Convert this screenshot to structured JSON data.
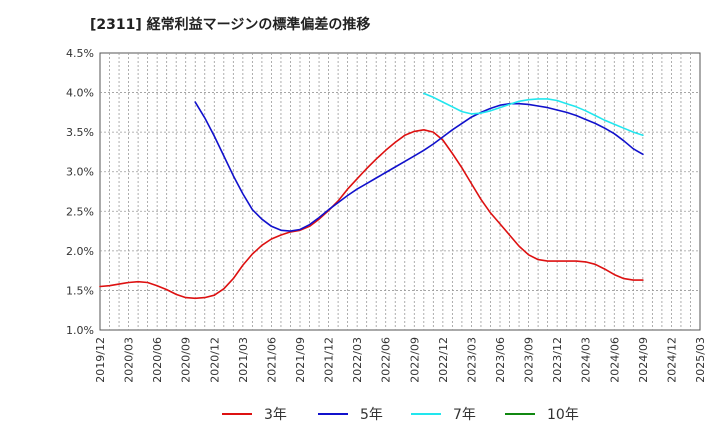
{
  "chart_data": {
    "type": "line",
    "title": "[2311]  経常利益マージンの標準偏差の推移",
    "xlabel": "",
    "ylabel": "",
    "ylim": [
      1.0,
      4.5
    ],
    "yticks": [
      "1.0%",
      "1.5%",
      "2.0%",
      "2.5%",
      "3.0%",
      "3.5%",
      "4.0%",
      "4.5%"
    ],
    "ytick_values": [
      1.0,
      1.5,
      2.0,
      2.5,
      3.0,
      3.5,
      4.0,
      4.5
    ],
    "xlim": [
      "2019-12",
      "2025-03"
    ],
    "xticks": [
      "2019/12",
      "2020/03",
      "2020/06",
      "2020/09",
      "2020/12",
      "2021/03",
      "2021/06",
      "2021/09",
      "2021/12",
      "2022/03",
      "2022/06",
      "2022/09",
      "2022/12",
      "2023/03",
      "2023/06",
      "2023/09",
      "2023/12",
      "2024/03",
      "2024/06",
      "2024/09",
      "2024/12",
      "2025/03"
    ],
    "grid": true,
    "legend_position": "bottom",
    "series": [
      {
        "name": "3年",
        "color": "#dd1111",
        "points": [
          [
            "2019-12",
            1.55
          ],
          [
            "2020-01",
            1.56
          ],
          [
            "2020-02",
            1.58
          ],
          [
            "2020-03",
            1.6
          ],
          [
            "2020-04",
            1.61
          ],
          [
            "2020-05",
            1.6
          ],
          [
            "2020-06",
            1.56
          ],
          [
            "2020-07",
            1.51
          ],
          [
            "2020-08",
            1.45
          ],
          [
            "2020-09",
            1.41
          ],
          [
            "2020-10",
            1.4
          ],
          [
            "2020-11",
            1.41
          ],
          [
            "2020-12",
            1.44
          ],
          [
            "2021-01",
            1.52
          ],
          [
            "2021-02",
            1.65
          ],
          [
            "2021-03",
            1.82
          ],
          [
            "2021-04",
            1.96
          ],
          [
            "2021-05",
            2.07
          ],
          [
            "2021-06",
            2.15
          ],
          [
            "2021-07",
            2.2
          ],
          [
            "2021-08",
            2.24
          ],
          [
            "2021-09",
            2.26
          ],
          [
            "2021-10",
            2.31
          ],
          [
            "2021-11",
            2.4
          ],
          [
            "2021-12",
            2.51
          ],
          [
            "2022-01",
            2.63
          ],
          [
            "2022-02",
            2.78
          ],
          [
            "2022-03",
            2.91
          ],
          [
            "2022-04",
            3.04
          ],
          [
            "2022-05",
            3.16
          ],
          [
            "2022-06",
            3.27
          ],
          [
            "2022-07",
            3.37
          ],
          [
            "2022-08",
            3.46
          ],
          [
            "2022-09",
            3.51
          ],
          [
            "2022-10",
            3.53
          ],
          [
            "2022-11",
            3.5
          ],
          [
            "2022-12",
            3.4
          ],
          [
            "2023-01",
            3.23
          ],
          [
            "2023-02",
            3.05
          ],
          [
            "2023-03",
            2.85
          ],
          [
            "2023-04",
            2.65
          ],
          [
            "2023-05",
            2.48
          ],
          [
            "2023-06",
            2.34
          ],
          [
            "2023-07",
            2.2
          ],
          [
            "2023-08",
            2.06
          ],
          [
            "2023-09",
            1.95
          ],
          [
            "2023-10",
            1.89
          ],
          [
            "2023-11",
            1.87
          ],
          [
            "2023-12",
            1.87
          ],
          [
            "2024-01",
            1.87
          ],
          [
            "2024-02",
            1.87
          ],
          [
            "2024-03",
            1.86
          ],
          [
            "2024-04",
            1.83
          ],
          [
            "2024-05",
            1.77
          ],
          [
            "2024-06",
            1.7
          ],
          [
            "2024-07",
            1.65
          ],
          [
            "2024-08",
            1.63
          ],
          [
            "2024-09",
            1.63
          ]
        ]
      },
      {
        "name": "5年",
        "color": "#1111cc",
        "points": [
          [
            "2020-10",
            3.88
          ],
          [
            "2020-11",
            3.68
          ],
          [
            "2020-12",
            3.45
          ],
          [
            "2021-01",
            3.2
          ],
          [
            "2021-02",
            2.95
          ],
          [
            "2021-03",
            2.72
          ],
          [
            "2021-04",
            2.52
          ],
          [
            "2021-05",
            2.4
          ],
          [
            "2021-06",
            2.31
          ],
          [
            "2021-07",
            2.26
          ],
          [
            "2021-08",
            2.25
          ],
          [
            "2021-09",
            2.27
          ],
          [
            "2021-10",
            2.33
          ],
          [
            "2021-11",
            2.42
          ],
          [
            "2021-12",
            2.52
          ],
          [
            "2022-01",
            2.61
          ],
          [
            "2022-02",
            2.7
          ],
          [
            "2022-03",
            2.78
          ],
          [
            "2022-04",
            2.85
          ],
          [
            "2022-05",
            2.92
          ],
          [
            "2022-06",
            2.99
          ],
          [
            "2022-07",
            3.06
          ],
          [
            "2022-08",
            3.13
          ],
          [
            "2022-09",
            3.2
          ],
          [
            "2022-10",
            3.27
          ],
          [
            "2022-11",
            3.35
          ],
          [
            "2022-12",
            3.44
          ],
          [
            "2023-01",
            3.53
          ],
          [
            "2023-02",
            3.61
          ],
          [
            "2023-03",
            3.69
          ],
          [
            "2023-04",
            3.75
          ],
          [
            "2023-05",
            3.8
          ],
          [
            "2023-06",
            3.84
          ],
          [
            "2023-07",
            3.86
          ],
          [
            "2023-08",
            3.86
          ],
          [
            "2023-09",
            3.85
          ],
          [
            "2023-10",
            3.83
          ],
          [
            "2023-11",
            3.81
          ],
          [
            "2023-12",
            3.78
          ],
          [
            "2024-01",
            3.75
          ],
          [
            "2024-02",
            3.71
          ],
          [
            "2024-03",
            3.66
          ],
          [
            "2024-04",
            3.61
          ],
          [
            "2024-05",
            3.55
          ],
          [
            "2024-06",
            3.48
          ],
          [
            "2024-07",
            3.39
          ],
          [
            "2024-08",
            3.29
          ],
          [
            "2024-09",
            3.22
          ]
        ]
      },
      {
        "name": "7年",
        "color": "#22e6ee",
        "points": [
          [
            "2022-10",
            3.99
          ],
          [
            "2022-11",
            3.94
          ],
          [
            "2022-12",
            3.88
          ],
          [
            "2023-01",
            3.82
          ],
          [
            "2023-02",
            3.76
          ],
          [
            "2023-03",
            3.73
          ],
          [
            "2023-04",
            3.74
          ],
          [
            "2023-05",
            3.77
          ],
          [
            "2023-06",
            3.81
          ],
          [
            "2023-07",
            3.85
          ],
          [
            "2023-08",
            3.89
          ],
          [
            "2023-09",
            3.91
          ],
          [
            "2023-10",
            3.92
          ],
          [
            "2023-11",
            3.92
          ],
          [
            "2023-12",
            3.9
          ],
          [
            "2024-01",
            3.86
          ],
          [
            "2024-02",
            3.82
          ],
          [
            "2024-03",
            3.77
          ],
          [
            "2024-04",
            3.71
          ],
          [
            "2024-05",
            3.65
          ],
          [
            "2024-06",
            3.6
          ],
          [
            "2024-07",
            3.55
          ],
          [
            "2024-08",
            3.5
          ],
          [
            "2024-09",
            3.46
          ]
        ]
      },
      {
        "name": "10年",
        "color": "#118811",
        "points": []
      }
    ]
  }
}
